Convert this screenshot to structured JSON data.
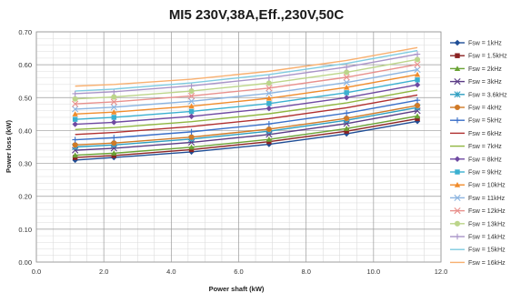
{
  "chart_data": {
    "type": "line",
    "title": "MI5 230V,38A,Eff.,230V,50C",
    "xlabel": "Power shaft (kW)",
    "ylabel": "Power loss (kW)",
    "xlim": [
      0,
      12
    ],
    "ylim": [
      0,
      0.7
    ],
    "x_ticks": [
      "0.0",
      "2.0",
      "4.0",
      "6.0",
      "8.0",
      "10.0",
      "12.0"
    ],
    "y_ticks": [
      "0.00",
      "0.10",
      "0.20",
      "0.30",
      "0.40",
      "0.50",
      "0.60",
      "0.70"
    ],
    "grid": true,
    "legend_position": "right",
    "x": [
      1.15,
      2.3,
      4.6,
      6.9,
      9.2,
      11.3
    ],
    "series": [
      {
        "name": "Fsw = 1kHz",
        "color": "#1f4e96",
        "marker": "diamond",
        "values": [
          0.31,
          0.318,
          0.335,
          0.358,
          0.39,
          0.428
        ]
      },
      {
        "name": "Fsw = 1.5kHz",
        "color": "#8b2323",
        "marker": "square",
        "values": [
          0.318,
          0.324,
          0.342,
          0.366,
          0.398,
          0.436
        ]
      },
      {
        "name": "Fsw = 2kHz",
        "color": "#6aa335",
        "marker": "triangle",
        "values": [
          0.325,
          0.331,
          0.349,
          0.373,
          0.406,
          0.444
        ]
      },
      {
        "name": "Fsw = 3kHz",
        "color": "#5b3c86",
        "marker": "x",
        "values": [
          0.34,
          0.346,
          0.364,
          0.388,
          0.421,
          0.46
        ]
      },
      {
        "name": "Fsw = 3.6kHz",
        "color": "#2e9fc1",
        "marker": "star",
        "values": [
          0.35,
          0.356,
          0.374,
          0.398,
          0.431,
          0.47
        ]
      },
      {
        "name": "Fsw = 4kHz",
        "color": "#d07a27",
        "marker": "circle",
        "values": [
          0.356,
          0.362,
          0.38,
          0.404,
          0.437,
          0.476
        ]
      },
      {
        "name": "Fsw = 5kHz",
        "color": "#3a6fc8",
        "marker": "plus",
        "values": [
          0.372,
          0.378,
          0.396,
          0.42,
          0.453,
          0.492
        ]
      },
      {
        "name": "Fsw = 6kHz",
        "color": "#b03030",
        "marker": "none",
        "values": [
          0.388,
          0.394,
          0.412,
          0.436,
          0.469,
          0.508
        ]
      },
      {
        "name": "Fsw = 7kHz",
        "color": "#8fb640",
        "marker": "none",
        "values": [
          0.403,
          0.409,
          0.427,
          0.451,
          0.484,
          0.523
        ]
      },
      {
        "name": "Fsw = 8kHz",
        "color": "#6f4aa2",
        "marker": "diamond",
        "values": [
          0.419,
          0.425,
          0.443,
          0.467,
          0.5,
          0.539
        ]
      },
      {
        "name": "Fsw = 9kHz",
        "color": "#3bb0d0",
        "marker": "square",
        "values": [
          0.434,
          0.44,
          0.458,
          0.482,
          0.515,
          0.554
        ]
      },
      {
        "name": "Fsw = 10kHz",
        "color": "#f08c2c",
        "marker": "triangle",
        "values": [
          0.45,
          0.456,
          0.474,
          0.498,
          0.531,
          0.57
        ]
      },
      {
        "name": "Fsw = 11kHz",
        "color": "#8cb4e0",
        "marker": "x",
        "values": [
          0.465,
          0.471,
          0.489,
          0.513,
          0.546,
          0.585
        ]
      },
      {
        "name": "Fsw = 12kHz",
        "color": "#e8908c",
        "marker": "x",
        "values": [
          0.481,
          0.487,
          0.505,
          0.529,
          0.562,
          0.601
        ]
      },
      {
        "name": "Fsw = 13kHz",
        "color": "#bcd58a",
        "marker": "circle",
        "values": [
          0.496,
          0.502,
          0.52,
          0.544,
          0.577,
          0.616
        ]
      },
      {
        "name": "Fsw = 14kHz",
        "color": "#a994c8",
        "marker": "plus",
        "values": [
          0.512,
          0.518,
          0.536,
          0.56,
          0.593,
          0.632
        ]
      },
      {
        "name": "Fsw = 15kHz",
        "color": "#7fcbe0",
        "marker": "none",
        "values": [
          0.52,
          0.526,
          0.545,
          0.57,
          0.604,
          0.643
        ]
      },
      {
        "name": "Fsw = 16kHz",
        "color": "#f8b070",
        "marker": "none",
        "values": [
          0.535,
          0.54,
          0.556,
          0.58,
          0.613,
          0.652
        ]
      }
    ]
  }
}
